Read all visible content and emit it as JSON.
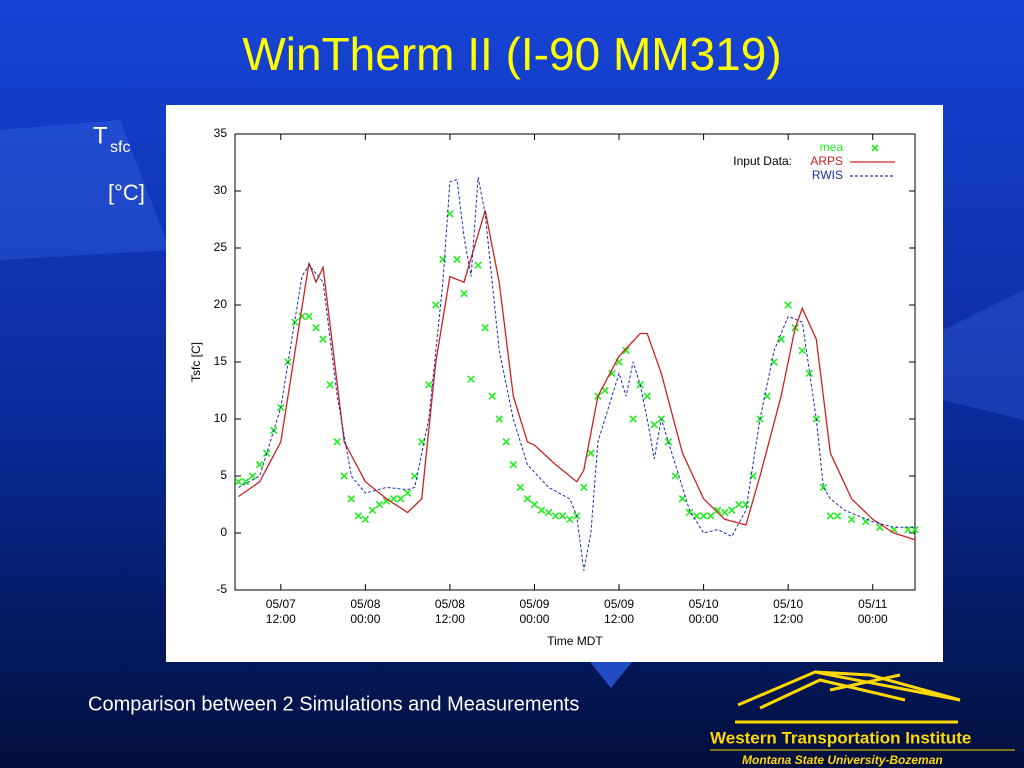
{
  "slide": {
    "title": "WinTherm II (I-90 MM319)",
    "side_label": {
      "symbol": "T",
      "subscript": "sfc",
      "unit": "[°C]"
    },
    "caption": "Comparison between 2 Simulations and Measurements",
    "logo": {
      "name": "Western Transportation Institute",
      "sub": "Montana State University-Bozeman"
    }
  },
  "chart_data": {
    "type": "line",
    "ylabel": "Tsfc [C]",
    "xlabel": "Time MDT",
    "legend_title": "Input Data:",
    "legend": "upper right",
    "xlim": [
      "05/07 05:30",
      "05/11 06:00"
    ],
    "xticks": [
      "05/07 12:00",
      "05/08 00:00",
      "05/08 12:00",
      "05/09 00:00",
      "05/09 12:00",
      "05/10 00:00",
      "05/10 12:00",
      "05/11 00:00"
    ],
    "ylim": [
      -5,
      35
    ],
    "yticks": [
      -5,
      0,
      5,
      10,
      15,
      20,
      25,
      30,
      35
    ],
    "series": [
      {
        "name": "mea",
        "color": "#22ee22",
        "style": "markers",
        "x": [
          "05/07 06:00",
          "05/07 07:00",
          "05/07 08:00",
          "05/07 09:00",
          "05/07 10:00",
          "05/07 11:00",
          "05/07 12:00",
          "05/07 13:00",
          "05/07 14:00",
          "05/07 15:00",
          "05/07 16:00",
          "05/07 17:00",
          "05/07 18:00",
          "05/07 19:00",
          "05/07 20:00",
          "05/07 21:00",
          "05/07 22:00",
          "05/07 23:00",
          "05/08 00:00",
          "05/08 01:00",
          "05/08 02:00",
          "05/08 03:00",
          "05/08 04:00",
          "05/08 05:00",
          "05/08 06:00",
          "05/08 07:00",
          "05/08 08:00",
          "05/08 09:00",
          "05/08 10:00",
          "05/08 11:00",
          "05/08 12:00",
          "05/08 13:00",
          "05/08 14:00",
          "05/08 15:00",
          "05/08 16:00",
          "05/08 17:00",
          "05/08 18:00",
          "05/08 19:00",
          "05/08 20:00",
          "05/08 21:00",
          "05/08 22:00",
          "05/08 23:00",
          "05/09 00:00",
          "05/09 01:00",
          "05/09 02:00",
          "05/09 03:00",
          "05/09 04:00",
          "05/09 05:00",
          "05/09 06:00",
          "05/09 07:00",
          "05/09 08:00",
          "05/09 09:00",
          "05/09 10:00",
          "05/09 11:00",
          "05/09 12:00",
          "05/09 13:00",
          "05/09 14:00",
          "05/09 15:00",
          "05/09 16:00",
          "05/09 17:00",
          "05/09 18:00",
          "05/09 19:00",
          "05/09 20:00",
          "05/09 21:00",
          "05/09 22:00",
          "05/09 23:00",
          "05/10 00:00",
          "05/10 01:00",
          "05/10 02:00",
          "05/10 03:00",
          "05/10 04:00",
          "05/10 05:00",
          "05/10 06:00",
          "05/10 07:00",
          "05/10 08:00",
          "05/10 09:00",
          "05/10 10:00",
          "05/10 11:00",
          "05/10 12:00",
          "05/10 13:00",
          "05/10 14:00",
          "05/10 15:00",
          "05/10 16:00",
          "05/10 17:00",
          "05/10 18:00",
          "05/10 19:00",
          "05/10 21:00",
          "05/10 23:00",
          "05/11 01:00",
          "05/11 03:00",
          "05/11 05:00",
          "05/11 06:00"
        ],
        "values": [
          4.5,
          4.5,
          5,
          6,
          7,
          9,
          11,
          15,
          18.5,
          19,
          19,
          18,
          17,
          13,
          8,
          5,
          3,
          1.5,
          1.2,
          2,
          2.5,
          2.8,
          3,
          3,
          3.5,
          5,
          8,
          13,
          20,
          24,
          28,
          24,
          21,
          13.5,
          23.5,
          18,
          12,
          10,
          8,
          6,
          4,
          3,
          2.5,
          2,
          1.8,
          1.5,
          1.5,
          1.2,
          1.5,
          4,
          7,
          12,
          12.5,
          14,
          15,
          16,
          10,
          13,
          12,
          9.5,
          10,
          8,
          5,
          3,
          1.8,
          1.5,
          1.5,
          1.5,
          2,
          1.8,
          2,
          2.5,
          2.5,
          5,
          10,
          12,
          15,
          17,
          20,
          18,
          16,
          14,
          10,
          4,
          1.5,
          1.5,
          1.2,
          1,
          0.5,
          0.3,
          0.3,
          0.3
        ]
      },
      {
        "name": "ARPS",
        "color": "#cc2222",
        "style": "solid",
        "x": [
          "05/07 06:00",
          "05/07 09:00",
          "05/07 12:00",
          "05/07 16:00",
          "05/07 17:00",
          "05/07 18:00",
          "05/07 21:00",
          "05/08 00:00",
          "05/08 03:00",
          "05/08 06:00",
          "05/08 08:00",
          "05/08 10:00",
          "05/08 12:00",
          "05/08 14:00",
          "05/08 17:00",
          "05/08 19:00",
          "05/08 21:00",
          "05/08 23:00",
          "05/09 00:00",
          "05/09 03:00",
          "05/09 06:00",
          "05/09 07:00",
          "05/09 09:00",
          "05/09 12:00",
          "05/09 15:00",
          "05/09 16:00",
          "05/09 18:00",
          "05/09 21:00",
          "05/10 00:00",
          "05/10 03:00",
          "05/10 06:00",
          "05/10 08:00",
          "05/10 11:00",
          "05/10 13:00",
          "05/10 14:00",
          "05/10 16:00",
          "05/10 18:00",
          "05/10 21:00",
          "05/11 00:00",
          "05/11 03:00",
          "05/11 06:00"
        ],
        "values": [
          3.2,
          4.5,
          8,
          23.7,
          22,
          23.3,
          8,
          4.5,
          3,
          1.8,
          3,
          15,
          22.5,
          22,
          28.3,
          22,
          12,
          8,
          7.7,
          6,
          4.5,
          5.5,
          12,
          15.5,
          17.5,
          17.5,
          14,
          7,
          3,
          1.2,
          0.7,
          5,
          12,
          18,
          19.7,
          17,
          7,
          3,
          1.2,
          0,
          -0.6
        ]
      },
      {
        "name": "RWIS",
        "color": "#1a2fb0",
        "style": "dashed",
        "x": [
          "05/07 06:00",
          "05/07 09:00",
          "05/07 12:00",
          "05/07 15:00",
          "05/07 16:00",
          "05/07 18:00",
          "05/07 20:00",
          "05/07 22:00",
          "05/08 00:00",
          "05/08 03:00",
          "05/08 06:00",
          "05/08 07:00",
          "05/08 09:00",
          "05/08 11:00",
          "05/08 12:00",
          "05/08 13:00",
          "05/08 14:00",
          "05/08 15:00",
          "05/08 16:00",
          "05/08 17:00",
          "05/08 19:00",
          "05/08 21:00",
          "05/08 23:00",
          "05/09 02:00",
          "05/09 05:00",
          "05/09 06:00",
          "05/09 07:00",
          "05/09 08:00",
          "05/09 09:00",
          "05/09 11:00",
          "05/09 12:00",
          "05/09 13:00",
          "05/09 14:00",
          "05/09 15:00",
          "05/09 16:00",
          "05/09 17:00",
          "05/09 18:00",
          "05/09 20:00",
          "05/09 22:00",
          "05/10 00:00",
          "05/10 02:00",
          "05/10 04:00",
          "05/10 06:00",
          "05/10 08:00",
          "05/10 10:00",
          "05/10 12:00",
          "05/10 14:00",
          "05/10 16:00",
          "05/10 17:00",
          "05/10 18:00",
          "05/10 20:00",
          "05/10 22:00",
          "05/11 00:00",
          "05/11 03:00",
          "05/11 06:00"
        ],
        "values": [
          4,
          5,
          11,
          22.5,
          23.5,
          22,
          12,
          5,
          3.5,
          4,
          3.8,
          4,
          10,
          22,
          30.8,
          31,
          26,
          22.5,
          31.2,
          28,
          16,
          10,
          6,
          4,
          3,
          1.5,
          -3.3,
          0,
          8,
          12,
          14,
          12,
          15,
          13,
          10,
          6.5,
          10,
          6,
          2,
          0,
          0.3,
          -0.3,
          2,
          10,
          16,
          19,
          18.5,
          10,
          4,
          3,
          2,
          1.5,
          1,
          0.5,
          0.5
        ]
      }
    ]
  }
}
